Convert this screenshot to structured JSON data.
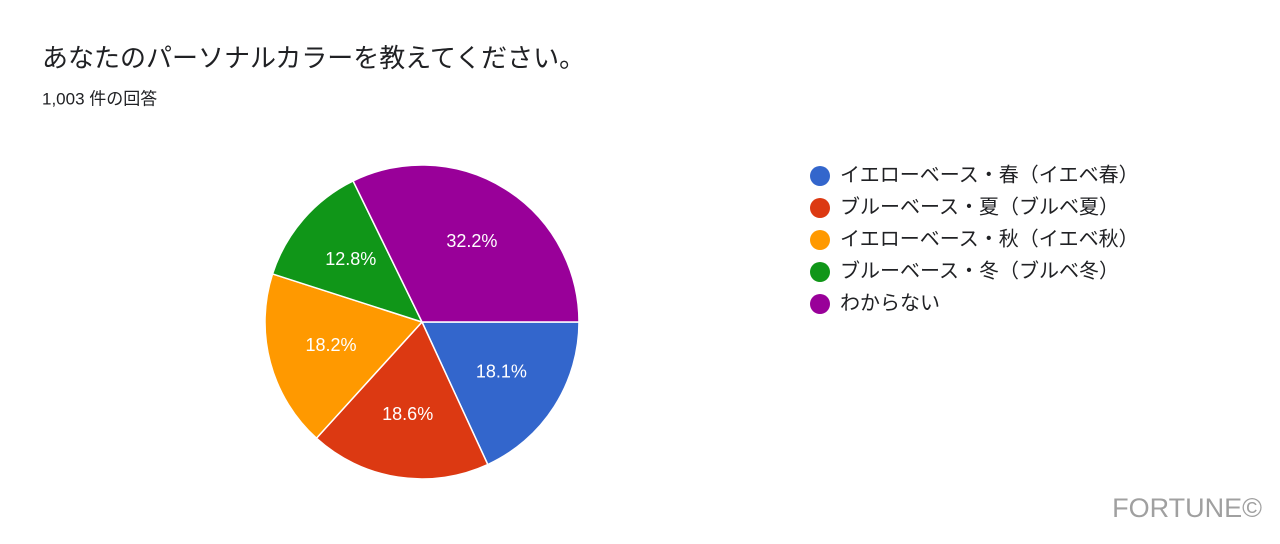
{
  "chart_data": {
    "type": "pie",
    "title": "あなたのパーソナルカラーを教えてください。",
    "subtitle": "1,003 件の回答",
    "categories": [
      "イエローベース・春（イエベ春）",
      "ブルーベース・夏（ブルベ夏）",
      "イエローベース・秋（イエベ秋）",
      "ブルーベース・冬（ブルベ冬）",
      "わからない"
    ],
    "values": [
      18.1,
      18.6,
      18.2,
      12.8,
      32.2
    ],
    "value_labels": [
      "18.1%",
      "18.6%",
      "18.2%",
      "12.8%",
      "32.2%"
    ],
    "colors": [
      "#3366cc",
      "#dc3912",
      "#ff9900",
      "#109618",
      "#990099"
    ],
    "legend": "right"
  },
  "watermark": "FORTUNE©"
}
